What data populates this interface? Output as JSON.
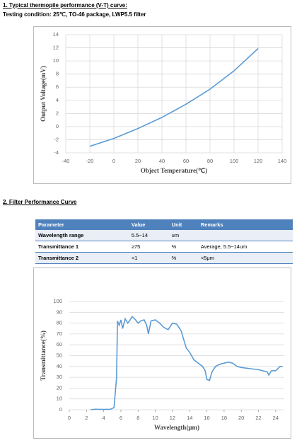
{
  "section1": {
    "heading": "1. Typical thermopile performance (V-T) curve:",
    "condition": "Testing condition: 25℃, TO-46 package, LWP5.5 filter"
  },
  "section2": {
    "heading": "2. Filter Performance Curve"
  },
  "table": {
    "header": [
      "Parameter",
      "Value",
      "Unit",
      "Remarks"
    ],
    "rows": [
      [
        "Wavelength range",
        "5.5~14",
        "um"
      ],
      [
        "Transmittance 1",
        "≥75",
        "%",
        "Average, 5.5~14um"
      ],
      [
        "Transmittance 2",
        "<1",
        "%",
        "<5μm"
      ]
    ]
  },
  "chart_data": [
    {
      "type": "line",
      "x_label": "Object Temperature(℃)",
      "y_label": "Output Voltage(mV)",
      "x": [
        -20,
        0,
        20,
        40,
        60,
        80,
        100,
        120
      ],
      "series": [
        {
          "color": "#5b9bd5",
          "values": [
            -3.0,
            -1.8,
            -0.3,
            1.4,
            3.4,
            5.7,
            8.5,
            11.9
          ]
        }
      ],
      "xlim": [
        -40,
        140
      ],
      "xticks": [
        -40,
        -20,
        0,
        20,
        40,
        60,
        80,
        100,
        120,
        140
      ],
      "ylim": [
        -4,
        14
      ],
      "yticks": [
        -4,
        -2,
        0,
        2,
        4,
        6,
        8,
        10,
        12,
        14
      ],
      "grid": "both"
    },
    {
      "type": "line",
      "x_label": "Wavelength(μm)",
      "y_label": "Transmittance(%)",
      "x": [
        2.5,
        3,
        4,
        4.8,
        5.2,
        5.5,
        5.6,
        5.8,
        6,
        6.2,
        6.5,
        6.8,
        7,
        7.3,
        7.6,
        8,
        8.3,
        8.7,
        9,
        9.2,
        9.5,
        10,
        10.5,
        11,
        11.5,
        12,
        12.5,
        13,
        13.3,
        13.6,
        14,
        14.5,
        15,
        15.5,
        15.8,
        16,
        16.3,
        16.6,
        17,
        17.5,
        18,
        18.5,
        19,
        19.5,
        20,
        21,
        22,
        22.5,
        23,
        23.2,
        23.5,
        24,
        24.5,
        24.8
      ],
      "series": [
        {
          "color": "#5b9bd5",
          "values": [
            0,
            0.5,
            0.3,
            0.5,
            2,
            30,
            82,
            78,
            83,
            75,
            84,
            80,
            82,
            86,
            84,
            80,
            82,
            83,
            78,
            70,
            82,
            83,
            80,
            76,
            74,
            80,
            79,
            73,
            65,
            57,
            53,
            46,
            43,
            40,
            36,
            28,
            27,
            35,
            40,
            42,
            43,
            44,
            43,
            40,
            39,
            38,
            37,
            36,
            35,
            32,
            36,
            36,
            40,
            40
          ]
        }
      ],
      "xlim": [
        0,
        25
      ],
      "xticks": [
        0,
        2,
        4,
        6,
        8,
        10,
        12,
        14,
        16,
        18,
        20,
        22,
        24
      ],
      "ylim": [
        0,
        100
      ],
      "yticks": [
        0,
        10,
        20,
        30,
        40,
        50,
        60,
        70,
        80,
        90,
        100
      ],
      "grid": "y"
    }
  ]
}
